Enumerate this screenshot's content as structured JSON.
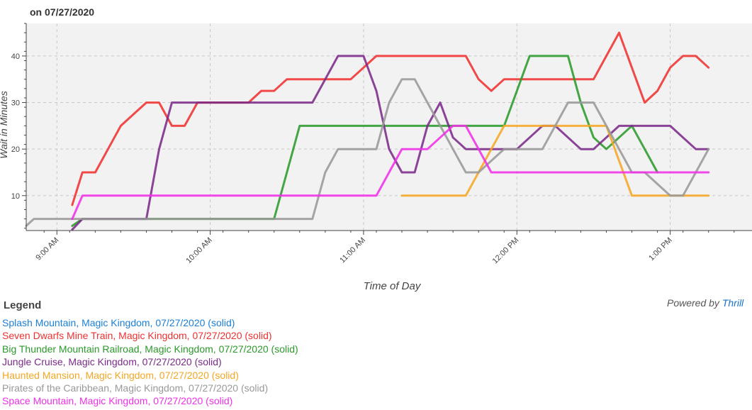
{
  "chart_data": {
    "type": "line",
    "title": "on 07/27/2020",
    "xlabel": "Time of Day",
    "ylabel": "Wait in Minutes",
    "x_range_minutes_after_9am": [
      -12,
      272
    ],
    "ylim": [
      2.5,
      47
    ],
    "grid": true,
    "x_ticks": [
      {
        "label": "9:00 AM",
        "value": 0
      },
      {
        "label": "10:00 AM",
        "value": 60
      },
      {
        "label": "11:00 AM",
        "value": 120
      },
      {
        "label": "12:00 PM",
        "value": 180
      },
      {
        "label": "1:00 PM",
        "value": 240
      }
    ],
    "y_ticks": [
      10,
      20,
      30,
      40
    ],
    "legend_title": "Legend",
    "powered_by": "Powered by",
    "powered_brand": "Thrill",
    "series": [
      {
        "name": "Splash Mountain, Magic Kingdom, 07/27/2020 (solid)",
        "color": "#1a7fd6",
        "points": []
      },
      {
        "name": "Seven Dwarfs Mine Train, Magic Kingdom, 07/27/2020 (solid)",
        "color": "#f03030",
        "points": [
          [
            6,
            8
          ],
          [
            10,
            15
          ],
          [
            15,
            15
          ],
          [
            20,
            20
          ],
          [
            25,
            25
          ],
          [
            30,
            27.5
          ],
          [
            35,
            30
          ],
          [
            40,
            30
          ],
          [
            45,
            25
          ],
          [
            50,
            25
          ],
          [
            55,
            30
          ],
          [
            60,
            30
          ],
          [
            65,
            30
          ],
          [
            70,
            30
          ],
          [
            75,
            30
          ],
          [
            80,
            32.5
          ],
          [
            85,
            32.5
          ],
          [
            90,
            35
          ],
          [
            95,
            35
          ],
          [
            100,
            35
          ],
          [
            105,
            35
          ],
          [
            110,
            35
          ],
          [
            115,
            35
          ],
          [
            120,
            37.5
          ],
          [
            125,
            40
          ],
          [
            130,
            40
          ],
          [
            135,
            40
          ],
          [
            140,
            40
          ],
          [
            145,
            40
          ],
          [
            150,
            40
          ],
          [
            155,
            40
          ],
          [
            160,
            40
          ],
          [
            165,
            35
          ],
          [
            170,
            32.5
          ],
          [
            175,
            35
          ],
          [
            180,
            35
          ],
          [
            185,
            35
          ],
          [
            190,
            35
          ],
          [
            195,
            35
          ],
          [
            200,
            35
          ],
          [
            205,
            35
          ],
          [
            210,
            35
          ],
          [
            215,
            40
          ],
          [
            220,
            45
          ],
          [
            225,
            37.5
          ],
          [
            230,
            30
          ],
          [
            235,
            32.5
          ],
          [
            240,
            37.5
          ],
          [
            245,
            40
          ],
          [
            250,
            40
          ],
          [
            255,
            37.5
          ]
        ]
      },
      {
        "name": "Big Thunder Mountain Railroad, Magic Kingdom, 07/27/2020 (solid)",
        "color": "#2a9a2a",
        "points": [
          [
            6,
            3.5
          ],
          [
            10,
            5
          ],
          [
            85,
            5
          ],
          [
            90,
            15
          ],
          [
            95,
            25
          ],
          [
            170,
            25
          ],
          [
            175,
            25
          ],
          [
            180,
            32.5
          ],
          [
            185,
            40
          ],
          [
            190,
            40
          ],
          [
            200,
            40
          ],
          [
            205,
            30
          ],
          [
            210,
            22.5
          ],
          [
            215,
            20
          ],
          [
            220,
            22.5
          ],
          [
            225,
            25
          ],
          [
            230,
            20
          ],
          [
            235,
            15
          ]
        ]
      },
      {
        "name": "Jungle Cruise, Magic Kingdom, 07/27/2020 (solid)",
        "color": "#7b2a8a",
        "points": [
          [
            6,
            2.7
          ],
          [
            10,
            5
          ],
          [
            35,
            5
          ],
          [
            40,
            20
          ],
          [
            45,
            30
          ],
          [
            100,
            30
          ],
          [
            105,
            35
          ],
          [
            110,
            40
          ],
          [
            115,
            40
          ],
          [
            120,
            40
          ],
          [
            125,
            32.5
          ],
          [
            130,
            20
          ],
          [
            135,
            15
          ],
          [
            140,
            15
          ],
          [
            145,
            25
          ],
          [
            150,
            30
          ],
          [
            155,
            22.5
          ],
          [
            160,
            20
          ],
          [
            170,
            20
          ],
          [
            175,
            20
          ],
          [
            180,
            20
          ],
          [
            185,
            22.5
          ],
          [
            190,
            25
          ],
          [
            195,
            25
          ],
          [
            200,
            22.5
          ],
          [
            205,
            20
          ],
          [
            210,
            20
          ],
          [
            215,
            22.5
          ],
          [
            220,
            25
          ],
          [
            230,
            25
          ],
          [
            235,
            25
          ],
          [
            240,
            25
          ],
          [
            245,
            22.5
          ],
          [
            250,
            20
          ],
          [
            255,
            20
          ]
        ]
      },
      {
        "name": "Haunted Mansion, Magic Kingdom, 07/27/2020 (solid)",
        "color": "#f5a623",
        "points": [
          [
            135,
            10
          ],
          [
            150,
            10
          ],
          [
            160,
            10
          ],
          [
            165,
            15
          ],
          [
            170,
            20
          ],
          [
            175,
            25
          ],
          [
            180,
            25
          ],
          [
            210,
            25
          ],
          [
            215,
            25
          ],
          [
            220,
            17.5
          ],
          [
            225,
            10
          ],
          [
            230,
            10
          ],
          [
            255,
            10
          ]
        ]
      },
      {
        "name": "Pirates of the Caribbean, Magic Kingdom, 07/27/2020 (solid)",
        "color": "#999999",
        "points": [
          [
            -12,
            3.5
          ],
          [
            -9,
            5
          ],
          [
            100,
            5
          ],
          [
            105,
            15
          ],
          [
            110,
            20
          ],
          [
            120,
            20
          ],
          [
            125,
            20
          ],
          [
            130,
            30
          ],
          [
            135,
            35
          ],
          [
            140,
            35
          ],
          [
            145,
            30
          ],
          [
            150,
            25
          ],
          [
            155,
            20
          ],
          [
            160,
            15
          ],
          [
            165,
            15
          ],
          [
            175,
            20
          ],
          [
            180,
            20
          ],
          [
            185,
            20
          ],
          [
            190,
            20
          ],
          [
            195,
            25
          ],
          [
            200,
            30
          ],
          [
            205,
            30
          ],
          [
            210,
            30
          ],
          [
            215,
            25
          ],
          [
            220,
            20
          ],
          [
            225,
            15
          ],
          [
            230,
            15
          ],
          [
            235,
            12.5
          ],
          [
            240,
            10
          ],
          [
            245,
            10
          ],
          [
            250,
            15
          ],
          [
            255,
            20
          ]
        ]
      },
      {
        "name": "Space Mountain, Magic Kingdom, 07/27/2020 (solid)",
        "color": "#f030e8",
        "points": [
          [
            6,
            5
          ],
          [
            10,
            10
          ],
          [
            15,
            10
          ],
          [
            20,
            10
          ],
          [
            120,
            10
          ],
          [
            125,
            10
          ],
          [
            130,
            15
          ],
          [
            135,
            20
          ],
          [
            140,
            20
          ],
          [
            145,
            20
          ],
          [
            150,
            22.5
          ],
          [
            155,
            25
          ],
          [
            160,
            25
          ],
          [
            165,
            20
          ],
          [
            170,
            15
          ],
          [
            175,
            15
          ],
          [
            180,
            15
          ],
          [
            240,
            15
          ],
          [
            255,
            15
          ]
        ]
      }
    ]
  }
}
